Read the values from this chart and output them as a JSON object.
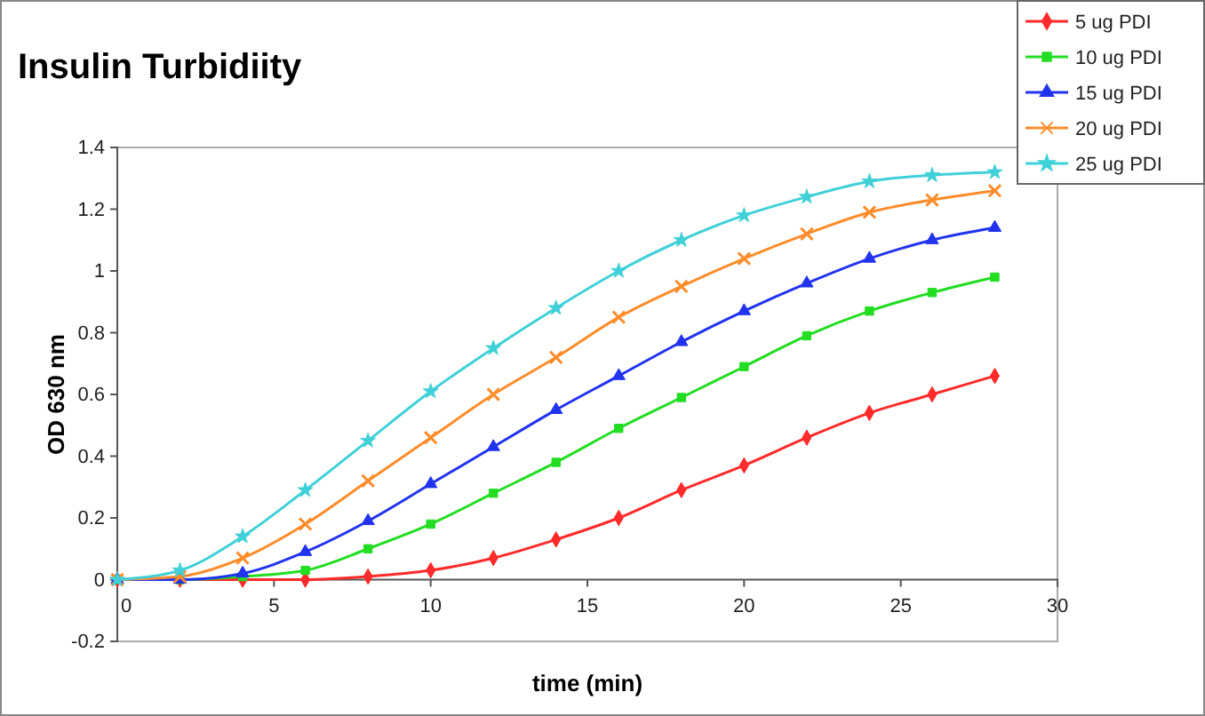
{
  "chart_data": {
    "type": "line",
    "title": "Insulin Turbidiity",
    "xlabel": "time (min)",
    "ylabel": "OD 630 nm",
    "x": [
      0,
      2,
      4,
      6,
      8,
      10,
      12,
      14,
      16,
      18,
      20,
      22,
      24,
      26,
      28
    ],
    "series": [
      {
        "name": "5 ug PDI",
        "color": "#ff2a2a",
        "marker": "diamond",
        "values": [
          0,
          0,
          0,
          0,
          0.01,
          0.03,
          0.07,
          0.13,
          0.2,
          0.29,
          0.37,
          0.46,
          0.54,
          0.6,
          0.66
        ]
      },
      {
        "name": "10 ug PDI",
        "color": "#22dd22",
        "marker": "square",
        "values": [
          0,
          0,
          0.01,
          0.03,
          0.1,
          0.18,
          0.28,
          0.38,
          0.49,
          0.59,
          0.69,
          0.79,
          0.87,
          0.93,
          0.98
        ]
      },
      {
        "name": "15 ug PDI",
        "color": "#2233ee",
        "marker": "triangle",
        "values": [
          0,
          0,
          0.02,
          0.09,
          0.19,
          0.31,
          0.43,
          0.55,
          0.66,
          0.77,
          0.87,
          0.96,
          1.04,
          1.1,
          1.14
        ]
      },
      {
        "name": "20 ug PDI",
        "color": "#ff8c2a",
        "marker": "cross",
        "values": [
          0,
          0.01,
          0.07,
          0.18,
          0.32,
          0.46,
          0.6,
          0.72,
          0.85,
          0.95,
          1.04,
          1.12,
          1.19,
          1.23,
          1.26
        ]
      },
      {
        "name": "25 ug PDI",
        "color": "#3fd0d8",
        "marker": "star",
        "values": [
          0,
          0.03,
          0.14,
          0.29,
          0.45,
          0.61,
          0.75,
          0.88,
          1.0,
          1.1,
          1.18,
          1.24,
          1.29,
          1.31,
          1.32
        ]
      }
    ],
    "xlim": [
      0,
      30
    ],
    "xticks": [
      0,
      5,
      10,
      15,
      20,
      25,
      30
    ],
    "ylim": [
      -0.2,
      1.4
    ],
    "yticks": [
      -0.2,
      0,
      0.2,
      0.4,
      0.6,
      0.8,
      1,
      1.2,
      1.4
    ],
    "grid": false,
    "legend": "top right",
    "line_style": "solid"
  }
}
